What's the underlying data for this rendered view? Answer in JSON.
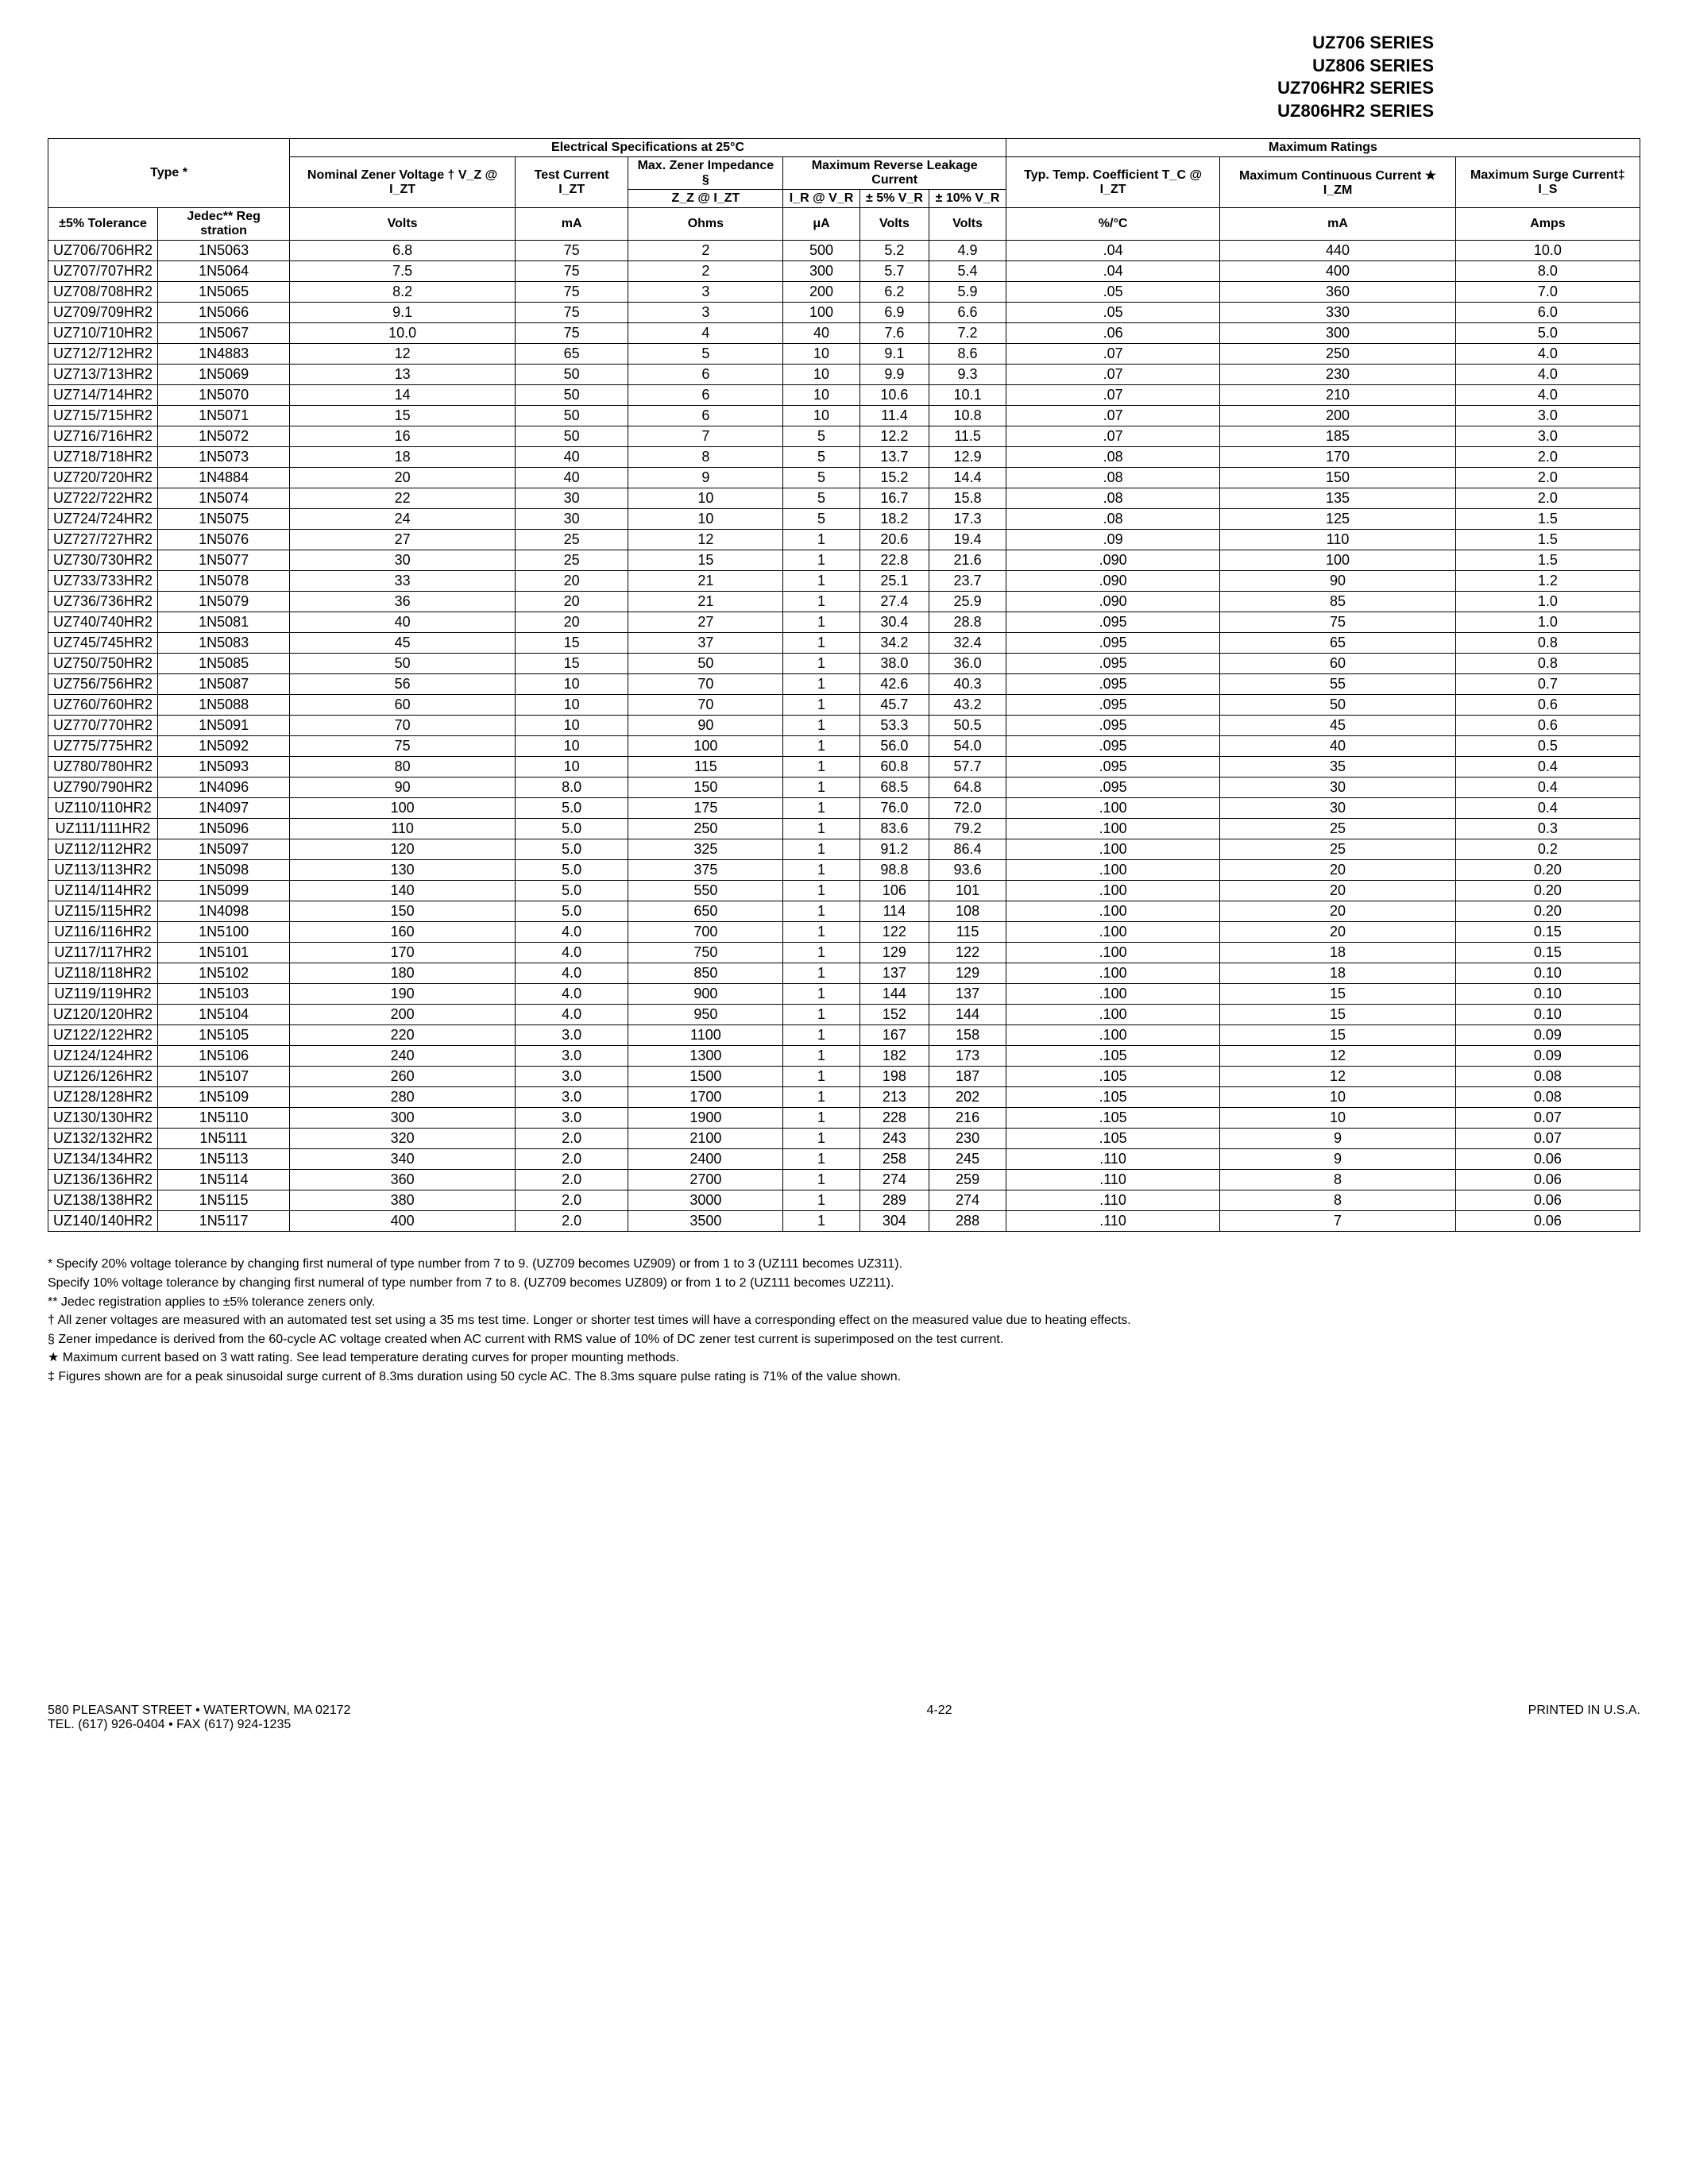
{
  "series": [
    "UZ706 SERIES",
    "UZ806 SERIES",
    "UZ706HR2 SERIES",
    "UZ806HR2 SERIES"
  ],
  "headers": {
    "elec_spec": "Electrical Specifications at 25°C",
    "max_ratings": "Maximum Ratings",
    "type": "Type *",
    "nominal": "Nominal Zener Voltage † V_Z @ I_ZT",
    "test_current": "Test Current I_ZT",
    "max_impedance": "Max. Zener Impedance §",
    "zz": "Z_Z @ I_ZT",
    "max_reverse": "Maximum Reverse Leakage Current",
    "ir": "I_R @ V_R",
    "pm5": "± 5% V_R",
    "pm10": "± 10% V_R",
    "temp_coef": "Typ. Temp. Coefficient T_C @ I_ZT",
    "max_cont": "Maximum Continuous Current ★ I_ZM",
    "max_surge": "Maximum Surge Current‡ I_S",
    "tol": "±5% Tolerance",
    "jedec": "Jedec** Reg stration",
    "u_volts": "Volts",
    "u_ma": "mA",
    "u_ohms": "Ohms",
    "u_ua": "μA",
    "u_pct": "%/°C",
    "u_amps": "Amps"
  },
  "groups": [
    [
      [
        "UZ706/706HR2",
        "1N5063",
        "6.8",
        "75",
        "2",
        "500",
        "5.2",
        "4.9",
        ".04",
        "440",
        "10.0"
      ],
      [
        "UZ707/707HR2",
        "1N5064",
        "7.5",
        "75",
        "2",
        "300",
        "5.7",
        "5.4",
        ".04",
        "400",
        "8.0"
      ],
      [
        "UZ708/708HR2",
        "1N5065",
        "8.2",
        "75",
        "3",
        "200",
        "6.2",
        "5.9",
        ".05",
        "360",
        "7.0"
      ],
      [
        "UZ709/709HR2",
        "1N5066",
        "9.1",
        "75",
        "3",
        "100",
        "6.9",
        "6.6",
        ".05",
        "330",
        "6.0"
      ],
      [
        "UZ710/710HR2",
        "1N5067",
        "10.0",
        "75",
        "4",
        "40",
        "7.6",
        "7.2",
        ".06",
        "300",
        "5.0"
      ]
    ],
    [
      [
        "UZ712/712HR2",
        "1N4883",
        "12",
        "65",
        "5",
        "10",
        "9.1",
        "8.6",
        ".07",
        "250",
        "4.0"
      ],
      [
        "UZ713/713HR2",
        "1N5069",
        "13",
        "50",
        "6",
        "10",
        "9.9",
        "9.3",
        ".07",
        "230",
        "4.0"
      ],
      [
        "UZ714/714HR2",
        "1N5070",
        "14",
        "50",
        "6",
        "10",
        "10.6",
        "10.1",
        ".07",
        "210",
        "4.0"
      ],
      [
        "UZ715/715HR2",
        "1N5071",
        "15",
        "50",
        "6",
        "10",
        "11.4",
        "10.8",
        ".07",
        "200",
        "3.0"
      ],
      [
        "UZ716/716HR2",
        "1N5072",
        "16",
        "50",
        "7",
        "5",
        "12.2",
        "11.5",
        ".07",
        "185",
        "3.0"
      ]
    ],
    [
      [
        "UZ718/718HR2",
        "1N5073",
        "18",
        "40",
        "8",
        "5",
        "13.7",
        "12.9",
        ".08",
        "170",
        "2.0"
      ],
      [
        "UZ720/720HR2",
        "1N4884",
        "20",
        "40",
        "9",
        "5",
        "15.2",
        "14.4",
        ".08",
        "150",
        "2.0"
      ],
      [
        "UZ722/722HR2",
        "1N5074",
        "22",
        "30",
        "10",
        "5",
        "16.7",
        "15.8",
        ".08",
        "135",
        "2.0"
      ],
      [
        "UZ724/724HR2",
        "1N5075",
        "24",
        "30",
        "10",
        "5",
        "18.2",
        "17.3",
        ".08",
        "125",
        "1.5"
      ],
      [
        "UZ727/727HR2",
        "1N5076",
        "27",
        "25",
        "12",
        "1",
        "20.6",
        "19.4",
        ".09",
        "110",
        "1.5"
      ]
    ],
    [
      [
        "UZ730/730HR2",
        "1N5077",
        "30",
        "25",
        "15",
        "1",
        "22.8",
        "21.6",
        ".090",
        "100",
        "1.5"
      ],
      [
        "UZ733/733HR2",
        "1N5078",
        "33",
        "20",
        "21",
        "1",
        "25.1",
        "23.7",
        ".090",
        "90",
        "1.2"
      ],
      [
        "UZ736/736HR2",
        "1N5079",
        "36",
        "20",
        "21",
        "1",
        "27.4",
        "25.9",
        ".090",
        "85",
        "1.0"
      ],
      [
        "UZ740/740HR2",
        "1N5081",
        "40",
        "20",
        "27",
        "1",
        "30.4",
        "28.8",
        ".095",
        "75",
        "1.0"
      ],
      [
        "UZ745/745HR2",
        "1N5083",
        "45",
        "15",
        "37",
        "1",
        "34.2",
        "32.4",
        ".095",
        "65",
        "0.8"
      ]
    ],
    [
      [
        "UZ750/750HR2",
        "1N5085",
        "50",
        "15",
        "50",
        "1",
        "38.0",
        "36.0",
        ".095",
        "60",
        "0.8"
      ],
      [
        "UZ756/756HR2",
        "1N5087",
        "56",
        "10",
        "70",
        "1",
        "42.6",
        "40.3",
        ".095",
        "55",
        "0.7"
      ],
      [
        "UZ760/760HR2",
        "1N5088",
        "60",
        "10",
        "70",
        "1",
        "45.7",
        "43.2",
        ".095",
        "50",
        "0.6"
      ],
      [
        "UZ770/770HR2",
        "1N5091",
        "70",
        "10",
        "90",
        "1",
        "53.3",
        "50.5",
        ".095",
        "45",
        "0.6"
      ],
      [
        "UZ775/775HR2",
        "1N5092",
        "75",
        "10",
        "100",
        "1",
        "56.0",
        "54.0",
        ".095",
        "40",
        "0.5"
      ]
    ],
    [
      [
        "UZ780/780HR2",
        "1N5093",
        "80",
        "10",
        "115",
        "1",
        "60.8",
        "57.7",
        ".095",
        "35",
        "0.4"
      ],
      [
        "UZ790/790HR2",
        "1N4096",
        "90",
        "8.0",
        "150",
        "1",
        "68.5",
        "64.8",
        ".095",
        "30",
        "0.4"
      ],
      [
        "UZ110/110HR2",
        "1N4097",
        "100",
        "5.0",
        "175",
        "1",
        "76.0",
        "72.0",
        ".100",
        "30",
        "0.4"
      ],
      [
        "UZ111/111HR2",
        "1N5096",
        "110",
        "5.0",
        "250",
        "1",
        "83.6",
        "79.2",
        ".100",
        "25",
        "0.3"
      ],
      [
        "UZ112/112HR2",
        "1N5097",
        "120",
        "5.0",
        "325",
        "1",
        "91.2",
        "86.4",
        ".100",
        "25",
        "0.2"
      ]
    ],
    [
      [
        "UZ113/113HR2",
        "1N5098",
        "130",
        "5.0",
        "375",
        "1",
        "98.8",
        "93.6",
        ".100",
        "20",
        "0.20"
      ],
      [
        "UZ114/114HR2",
        "1N5099",
        "140",
        "5.0",
        "550",
        "1",
        "106",
        "101",
        ".100",
        "20",
        "0.20"
      ],
      [
        "UZ115/115HR2",
        "1N4098",
        "150",
        "5.0",
        "650",
        "1",
        "114",
        "108",
        ".100",
        "20",
        "0.20"
      ],
      [
        "UZ116/116HR2",
        "1N5100",
        "160",
        "4.0",
        "700",
        "1",
        "122",
        "115",
        ".100",
        "20",
        "0.15"
      ],
      [
        "UZ117/117HR2",
        "1N5101",
        "170",
        "4.0",
        "750",
        "1",
        "129",
        "122",
        ".100",
        "18",
        "0.15"
      ]
    ],
    [
      [
        "UZ118/118HR2",
        "1N5102",
        "180",
        "4.0",
        "850",
        "1",
        "137",
        "129",
        ".100",
        "18",
        "0.10"
      ],
      [
        "UZ119/119HR2",
        "1N5103",
        "190",
        "4.0",
        "900",
        "1",
        "144",
        "137",
        ".100",
        "15",
        "0.10"
      ],
      [
        "UZ120/120HR2",
        "1N5104",
        "200",
        "4.0",
        "950",
        "1",
        "152",
        "144",
        ".100",
        "15",
        "0.10"
      ],
      [
        "UZ122/122HR2",
        "1N5105",
        "220",
        "3.0",
        "1100",
        "1",
        "167",
        "158",
        ".100",
        "15",
        "0.09"
      ],
      [
        "UZ124/124HR2",
        "1N5106",
        "240",
        "3.0",
        "1300",
        "1",
        "182",
        "173",
        ".105",
        "12",
        "0.09"
      ]
    ],
    [
      [
        "UZ126/126HR2",
        "1N5107",
        "260",
        "3.0",
        "1500",
        "1",
        "198",
        "187",
        ".105",
        "12",
        "0.08"
      ],
      [
        "UZ128/128HR2",
        "1N5109",
        "280",
        "3.0",
        "1700",
        "1",
        "213",
        "202",
        ".105",
        "10",
        "0.08"
      ],
      [
        "UZ130/130HR2",
        "1N5110",
        "300",
        "3.0",
        "1900",
        "1",
        "228",
        "216",
        ".105",
        "10",
        "0.07"
      ],
      [
        "UZ132/132HR2",
        "1N5111",
        "320",
        "2.0",
        "2100",
        "1",
        "243",
        "230",
        ".105",
        "9",
        "0.07"
      ],
      [
        "UZ134/134HR2",
        "1N5113",
        "340",
        "2.0",
        "2400",
        "1",
        "258",
        "245",
        ".110",
        "9",
        "0.06"
      ]
    ],
    [
      [
        "UZ136/136HR2",
        "1N5114",
        "360",
        "2.0",
        "2700",
        "1",
        "274",
        "259",
        ".110",
        "8",
        "0.06"
      ],
      [
        "UZ138/138HR2",
        "1N5115",
        "380",
        "2.0",
        "3000",
        "1",
        "289",
        "274",
        ".110",
        "8",
        "0.06"
      ],
      [
        "UZ140/140HR2",
        "1N5117",
        "400",
        "2.0",
        "3500",
        "1",
        "304",
        "288",
        ".110",
        "7",
        "0.06"
      ]
    ]
  ],
  "footnotes": [
    "* Specify 20% voltage tolerance by changing first numeral of type number from 7 to 9. (UZ709 becomes UZ909) or from 1 to 3 (UZ111 becomes UZ311).",
    "  Specify 10% voltage tolerance by changing first numeral of type number from 7 to 8. (UZ709 becomes UZ809) or from 1 to 2 (UZ111 becomes UZ211).",
    "** Jedec registration applies to ±5% tolerance zeners only.",
    "† All zener voltages are measured with an automated test set using a 35 ms test time. Longer or shorter test times will have a corresponding effect on the measured value due to heating effects.",
    "§ Zener impedance is derived from the 60-cycle AC voltage created when AC current with RMS value of 10% of DC zener test current is superimposed on the test current.",
    "★ Maximum current based on 3 watt rating. See lead temperature derating curves for proper mounting methods.",
    "‡ Figures shown are for a peak sinusoidal surge current of 8.3ms duration using 50 cycle AC.  The 8.3ms square pulse rating is 71% of the value shown."
  ],
  "footer": {
    "address": "580 PLEASANT STREET • WATERTOWN, MA 02172\nTEL. (617) 926-0404 • FAX (617) 924-1235",
    "page": "4-22",
    "printed": "PRINTED IN U.S.A."
  }
}
